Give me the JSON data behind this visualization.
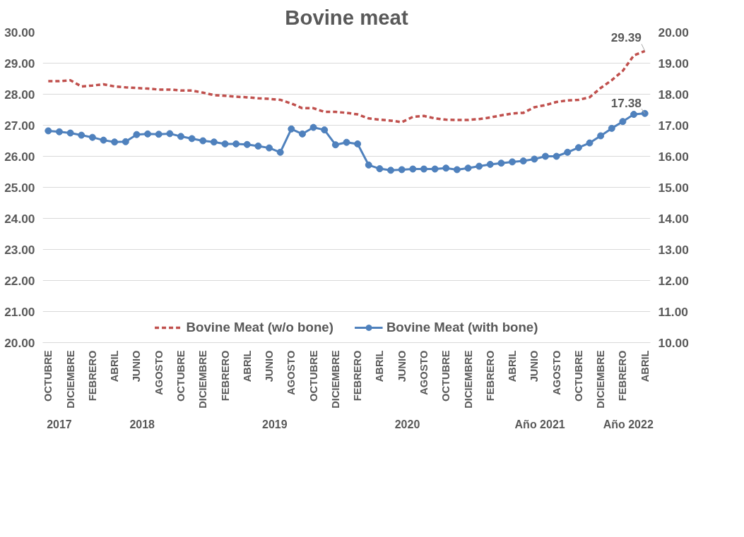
{
  "chart_data": {
    "type": "line",
    "title": "Bovine meat",
    "categories": [
      "OCTUBRE",
      null,
      "DICIEMBRE",
      null,
      "FEBRERO",
      null,
      "ABRIL",
      null,
      "JUNIO",
      null,
      "AGOSTO",
      null,
      "OCTUBRE",
      null,
      "DICIEMBRE",
      null,
      "FEBRERO",
      null,
      "ABRIL",
      null,
      "JUNIO",
      null,
      "AGOSTO",
      null,
      "OCTUBRE",
      null,
      "DICIEMBRE",
      null,
      "FEBRERO",
      null,
      "ABRIL",
      null,
      "JUNIO",
      null,
      "AGOSTO",
      null,
      "OCTUBRE",
      null,
      "DICIEMBRE",
      null,
      "FEBRERO",
      null,
      "ABRIL",
      null,
      "JUNIO",
      null,
      "AGOSTO",
      null,
      "OCTUBRE",
      null,
      "DICIEMBRE",
      null,
      "FEBRERO",
      null,
      "ABRIL"
    ],
    "series": [
      {
        "name": "Bovine Meat (w/o bone)",
        "color": "#c0504d",
        "line_style": "dashed",
        "marker": "none",
        "values": [
          28.42,
          28.42,
          28.45,
          28.25,
          28.28,
          28.32,
          28.25,
          28.22,
          28.2,
          28.18,
          28.15,
          28.15,
          28.12,
          28.12,
          28.05,
          27.97,
          27.95,
          27.92,
          27.9,
          27.87,
          27.85,
          27.82,
          27.7,
          27.55,
          27.55,
          27.43,
          27.43,
          27.4,
          27.35,
          27.22,
          27.18,
          27.15,
          27.1,
          27.27,
          27.3,
          27.22,
          27.18,
          27.17,
          27.17,
          27.2,
          27.25,
          27.32,
          27.38,
          27.4,
          27.58,
          27.65,
          27.75,
          27.8,
          27.82,
          27.9,
          28.2,
          28.45,
          28.75,
          29.25,
          29.39
        ],
        "value_labels": [
          null,
          null,
          null,
          null,
          null,
          null,
          null,
          null,
          null,
          null,
          null,
          null,
          null,
          null,
          null,
          null,
          null,
          null,
          null,
          null,
          null,
          null,
          null,
          null,
          null,
          null,
          null,
          null,
          null,
          null,
          null,
          null,
          null,
          null,
          null,
          null,
          null,
          null,
          null,
          null,
          null,
          null,
          null,
          null,
          null,
          null,
          null,
          null,
          null,
          null,
          null,
          null,
          null,
          null,
          "29.39"
        ]
      },
      {
        "name": "Bovine Meat (with bone)",
        "color": "#4f81bd",
        "axis": "y2",
        "line_style": "solid",
        "marker": "circle",
        "values": [
          16.82,
          16.79,
          16.75,
          16.68,
          16.61,
          16.52,
          16.46,
          16.47,
          16.7,
          16.72,
          16.71,
          16.73,
          16.64,
          16.57,
          16.5,
          16.46,
          16.4,
          16.4,
          16.38,
          16.33,
          16.27,
          16.13,
          16.88,
          16.72,
          16.93,
          16.85,
          16.37,
          16.45,
          16.4,
          15.72,
          15.6,
          15.55,
          15.57,
          15.59,
          15.59,
          15.59,
          15.62,
          15.57,
          15.62,
          15.68,
          15.74,
          15.78,
          15.82,
          15.85,
          15.91,
          16.0,
          16.0,
          16.13,
          16.28,
          16.43,
          16.66,
          16.9,
          17.12,
          17.35,
          17.38
        ],
        "value_labels": [
          null,
          null,
          null,
          null,
          null,
          null,
          null,
          null,
          null,
          null,
          null,
          null,
          null,
          null,
          null,
          null,
          null,
          null,
          null,
          null,
          null,
          null,
          null,
          null,
          null,
          null,
          null,
          null,
          null,
          null,
          null,
          null,
          null,
          null,
          null,
          null,
          null,
          null,
          null,
          null,
          null,
          null,
          null,
          null,
          null,
          null,
          null,
          null,
          null,
          null,
          null,
          null,
          null,
          null,
          "17.38"
        ]
      }
    ],
    "ylim": [
      20,
      30
    ],
    "yticks": [
      {
        "value": 20,
        "label": "20.00"
      },
      {
        "value": 21,
        "label": "21.00"
      },
      {
        "value": 22,
        "label": "22.00"
      },
      {
        "value": 23,
        "label": "23.00"
      },
      {
        "value": 24,
        "label": "24.00"
      },
      {
        "value": 25,
        "label": "25.00"
      },
      {
        "value": 26,
        "label": "26.00"
      },
      {
        "value": 27,
        "label": "27.00"
      },
      {
        "value": 28,
        "label": "28.00"
      },
      {
        "value": 29,
        "label": "29.00"
      },
      {
        "value": 30,
        "label": "30.00"
      }
    ],
    "y2lim": [
      10,
      20
    ],
    "y2ticks": [
      {
        "value": 10,
        "label": "10.00"
      },
      {
        "value": 11,
        "label": "11.00"
      },
      {
        "value": 12,
        "label": "12.00"
      },
      {
        "value": 13,
        "label": "13.00"
      },
      {
        "value": 14,
        "label": "14.00"
      },
      {
        "value": 15,
        "label": "15.00"
      },
      {
        "value": 16,
        "label": "16.00"
      },
      {
        "value": 17,
        "label": "17.00"
      },
      {
        "value": 18,
        "label": "18.00"
      },
      {
        "value": 19,
        "label": "19.00"
      },
      {
        "value": 20,
        "label": "20.00"
      }
    ],
    "annotations": [
      "2017",
      "2018",
      "2019",
      "2020",
      "Año 2021",
      "Año 2022"
    ],
    "grid": "y",
    "legend": "bottom"
  }
}
